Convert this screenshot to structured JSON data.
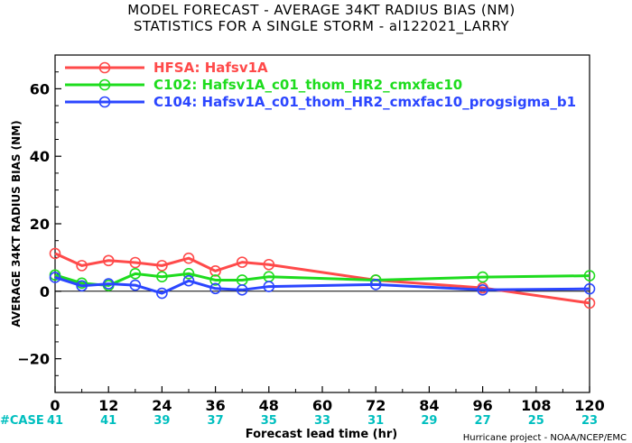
{
  "title_line1": "MODEL FORECAST - AVERAGE 34KT RADIUS BIAS (NM)",
  "title_line2": "STATISTICS FOR A SINGLE STORM - al122021_LARRY",
  "credit": "Hurricane project - NOAA/NCEP/EMC",
  "case_label": "#CASE",
  "case_counts": [
    "41",
    "41",
    "39",
    "37",
    "35",
    "33",
    "31",
    "29",
    "27",
    "25",
    "23"
  ],
  "colors": {
    "HFSA": "#ff4a4a",
    "C102": "#1edc1e",
    "C104": "#2b46ff",
    "zero": "#000000",
    "case": "#00bfbf"
  },
  "chart_data": {
    "type": "line",
    "title": "MODEL FORECAST - AVERAGE 34KT RADIUS BIAS (NM)",
    "subtitle": "STATISTICS FOR A SINGLE STORM - al122021_LARRY",
    "xlabel": "Forecast lead time (hr)",
    "ylabel": "AVERAGE 34KT RADIUS BIAS (NM)",
    "xlim": [
      0,
      120
    ],
    "ylim": [
      -30,
      70
    ],
    "xticks": [
      0,
      12,
      24,
      36,
      48,
      60,
      72,
      84,
      96,
      108,
      120
    ],
    "yticks": [
      -20,
      0,
      20,
      40,
      60
    ],
    "grid": false,
    "legend": "top-left",
    "series": [
      {
        "name": "HFSA: Hafsv1A",
        "key": "HFSA",
        "x": [
          0,
          6,
          12,
          18,
          24,
          30,
          36,
          42,
          48,
          72,
          96,
          120
        ],
        "y": [
          11.2,
          7.6,
          9.1,
          8.5,
          7.6,
          9.8,
          6.0,
          8.6,
          7.9,
          3.3,
          1.0,
          -3.5
        ]
      },
      {
        "name": "C102: Hafsv1A_c01_thom_HR2_cmxfac10",
        "key": "C102",
        "x": [
          0,
          6,
          12,
          18,
          24,
          30,
          36,
          42,
          48,
          72,
          96,
          120
        ],
        "y": [
          4.8,
          2.4,
          1.7,
          5.2,
          4.3,
          5.2,
          3.3,
          3.3,
          4.3,
          3.3,
          4.2,
          4.6
        ]
      },
      {
        "name": "C104: Hafsv1A_c01_thom_HR2_cmxfac10_progsigma_b1",
        "key": "C104",
        "x": [
          0,
          6,
          12,
          18,
          24,
          30,
          36,
          42,
          48,
          72,
          96,
          120
        ],
        "y": [
          4.1,
          1.6,
          2.2,
          1.8,
          -0.6,
          3.1,
          0.8,
          0.4,
          1.4,
          2.0,
          0.4,
          0.7
        ]
      }
    ]
  }
}
